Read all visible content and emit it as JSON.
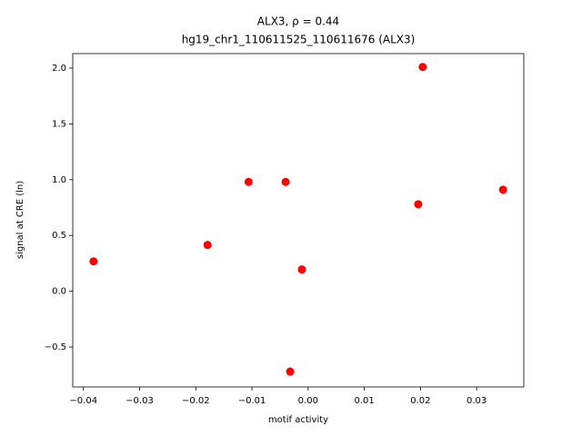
{
  "chart_data": {
    "type": "scatter",
    "title": "ALX3, ρ = 0.44",
    "subtitle": "hg19_chr1_110611525_110611676 (ALX3)",
    "x_label": "motif activity",
    "y_label": "signal at CRE (ln)",
    "color": "#ff0000",
    "x": [
      -0.0382,
      -0.0179,
      -0.0106,
      -0.004,
      -0.0011,
      -0.0032,
      0.0196,
      0.0204,
      0.0347
    ],
    "values": [
      0.268,
      0.415,
      0.98,
      0.98,
      0.195,
      -0.72,
      0.78,
      2.01,
      0.91
    ],
    "xlim": [
      -0.0419,
      0.0384
    ],
    "ylim": [
      -0.858,
      2.13
    ],
    "xticks": [
      {
        "value": -0.04,
        "label": "−0.04"
      },
      {
        "value": -0.03,
        "label": "−0.03"
      },
      {
        "value": -0.02,
        "label": "−0.02"
      },
      {
        "value": -0.01,
        "label": "−0.01"
      },
      {
        "value": 0,
        "label": "0.00"
      },
      0.01,
      0.02,
      0.03
    ],
    "yticks": [
      {
        "value": -0.5,
        "label": "−0.5"
      },
      {
        "value": 0,
        "label": "0.0"
      },
      0.5,
      {
        "value": 1,
        "label": "1.0"
      },
      1.5,
      {
        "value": 2,
        "label": "2.0"
      }
    ],
    "grid": false
  }
}
